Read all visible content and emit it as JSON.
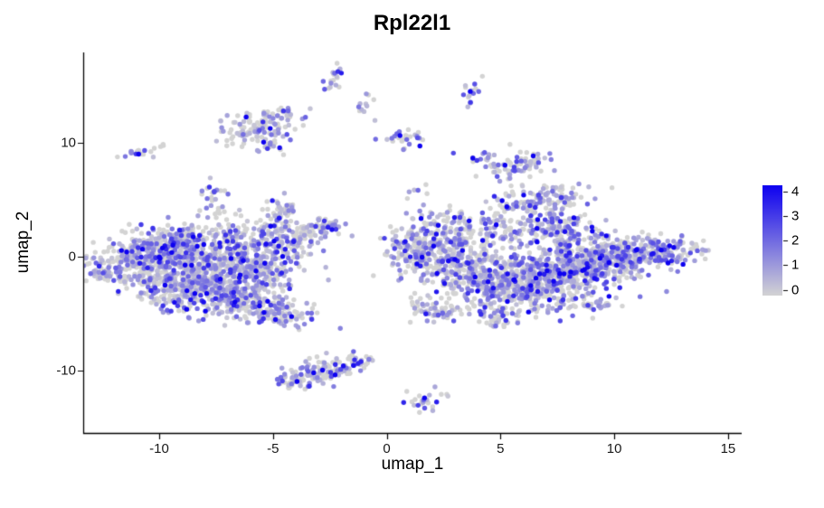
{
  "chart_data": {
    "type": "scatter",
    "title": "Rpl22l1",
    "xlabel": "umap_1",
    "ylabel": "umap_2",
    "xlim": [
      -13.34,
      15.6
    ],
    "ylim": [
      -15.56,
      17.94
    ],
    "x_ticks": [
      -10,
      -5,
      0,
      5,
      10,
      15
    ],
    "y_ticks": [
      10,
      0,
      -10
    ],
    "grid": false,
    "legend_position": "right",
    "background_color": "#FFFFFF",
    "axis_color": "#000000",
    "point_radius_px": 2.7,
    "colorbar": {
      "ticks": [
        0,
        1,
        2,
        3,
        4
      ],
      "low_color": "#D3D3D3",
      "high_color": "#0D00F0"
    },
    "clusters": [
      {
        "cx": -12.4,
        "cy": -1.0,
        "sx": 0.5,
        "sy": 0.9,
        "n": 55,
        "p0": 0.55
      },
      {
        "cx": -10.8,
        "cy": -0.3,
        "sx": 0.9,
        "sy": 1.1,
        "n": 230,
        "p0": 0.46
      },
      {
        "cx": -9.6,
        "cy": 0.9,
        "sx": 0.85,
        "sy": 0.95,
        "n": 190,
        "p0": 0.42
      },
      {
        "cx": -8.6,
        "cy": 1.8,
        "sx": 0.6,
        "sy": 0.6,
        "n": 55,
        "p0": 0.45
      },
      {
        "cx": -9.1,
        "cy": -2.4,
        "sx": 1.0,
        "sy": 1.1,
        "n": 240,
        "p0": 0.46
      },
      {
        "cx": -7.6,
        "cy": -1.0,
        "sx": 1.05,
        "sy": 1.25,
        "n": 280,
        "p0": 0.4
      },
      {
        "cx": -6.6,
        "cy": -3.4,
        "sx": 1.05,
        "sy": 0.95,
        "n": 240,
        "p0": 0.45
      },
      {
        "cx": -4.8,
        "cy": -5.0,
        "sx": 0.8,
        "sy": 0.55,
        "n": 105,
        "p0": 0.5,
        "rot": -15
      },
      {
        "cx": -5.6,
        "cy": -0.6,
        "sx": 0.9,
        "sy": 1.0,
        "n": 185,
        "p0": 0.42
      },
      {
        "cx": -6.3,
        "cy": 2.0,
        "sx": 0.7,
        "sy": 0.8,
        "n": 70,
        "p0": 0.46
      },
      {
        "cx": -4.4,
        "cy": 1.7,
        "sx": 0.65,
        "sy": 0.9,
        "n": 105,
        "p0": 0.45
      },
      {
        "cx": -4.6,
        "cy": 3.9,
        "sx": 0.35,
        "sy": 0.75,
        "n": 38,
        "p0": 0.45
      },
      {
        "cx": -2.8,
        "cy": 2.6,
        "sx": 0.5,
        "sy": 0.45,
        "n": 50,
        "p0": 0.5
      },
      {
        "cx": 1.3,
        "cy": 0.7,
        "sx": 0.8,
        "sy": 1.0,
        "n": 145,
        "p0": 0.5
      },
      {
        "cx": 2.4,
        "cy": 2.8,
        "sx": 0.7,
        "sy": 0.9,
        "n": 70,
        "p0": 0.5
      },
      {
        "cx": 2.9,
        "cy": -0.6,
        "sx": 1.0,
        "sy": 1.2,
        "n": 205,
        "p0": 0.48
      },
      {
        "cx": 4.6,
        "cy": -2.1,
        "sx": 1.2,
        "sy": 1.3,
        "n": 285,
        "p0": 0.45
      },
      {
        "cx": 6.6,
        "cy": -2.4,
        "sx": 1.2,
        "sy": 1.3,
        "n": 305,
        "p0": 0.4
      },
      {
        "cx": 8.1,
        "cy": -1.0,
        "sx": 1.2,
        "sy": 1.15,
        "n": 285,
        "p0": 0.36
      },
      {
        "cx": 8.6,
        "cy": -4.2,
        "sx": 0.8,
        "sy": 0.5,
        "n": 40,
        "p0": 0.42
      },
      {
        "cx": 10.0,
        "cy": -0.2,
        "sx": 1.15,
        "sy": 0.95,
        "n": 250,
        "p0": 0.36
      },
      {
        "cx": 12.1,
        "cy": 0.4,
        "sx": 0.95,
        "sy": 0.6,
        "n": 140,
        "p0": 0.4,
        "rot": 8
      },
      {
        "cx": 6.7,
        "cy": 5.0,
        "sx": 1.2,
        "sy": 0.55,
        "n": 120,
        "p0": 0.4,
        "rot": 10
      },
      {
        "cx": 7.4,
        "cy": 2.6,
        "sx": 1.0,
        "sy": 0.8,
        "n": 140,
        "p0": 0.4
      },
      {
        "cx": 4.6,
        "cy": 2.4,
        "sx": 0.8,
        "sy": 0.8,
        "n": 105,
        "p0": 0.46
      },
      {
        "cx": 2.1,
        "cy": -4.7,
        "sx": 0.7,
        "sy": 0.55,
        "n": 60,
        "p0": 0.5
      },
      {
        "cx": 4.9,
        "cy": -5.4,
        "sx": 0.6,
        "sy": 0.5,
        "n": 45,
        "p0": 0.46
      },
      {
        "cx": 1.4,
        "cy": 6.2,
        "sx": 0.5,
        "sy": 0.7,
        "n": 6,
        "p0": 0.45
      },
      {
        "cx": -5.7,
        "cy": 11.2,
        "sx": 0.85,
        "sy": 0.75,
        "n": 100,
        "p0": 0.45
      },
      {
        "cx": -4.6,
        "cy": 12.4,
        "sx": 0.45,
        "sy": 0.4,
        "n": 26,
        "p0": 0.42
      },
      {
        "cx": -5.1,
        "cy": 9.7,
        "sx": 0.3,
        "sy": 0.3,
        "n": 10,
        "p0": 0.5
      },
      {
        "cx": -10.8,
        "cy": 9.2,
        "sx": 0.5,
        "sy": 0.2,
        "n": 22,
        "p0": 0.6,
        "rot": 20
      },
      {
        "cx": -7.7,
        "cy": 5.8,
        "sx": 0.3,
        "sy": 0.45,
        "n": 16,
        "p0": 0.5
      },
      {
        "cx": -7.45,
        "cy": 4.0,
        "sx": 0.4,
        "sy": 0.4,
        "n": 15,
        "p0": 0.5
      },
      {
        "cx": -2.3,
        "cy": 15.7,
        "sx": 0.2,
        "sy": 0.65,
        "n": 18,
        "p0": 0.4,
        "rot": -12
      },
      {
        "cx": -0.85,
        "cy": 13.1,
        "sx": 0.22,
        "sy": 0.45,
        "n": 11,
        "p0": 0.4
      },
      {
        "cx": 3.75,
        "cy": 14.6,
        "sx": 0.22,
        "sy": 0.6,
        "n": 15,
        "p0": 0.45,
        "rot": -10
      },
      {
        "cx": 0.75,
        "cy": 10.6,
        "sx": 0.4,
        "sy": 0.5,
        "n": 26,
        "p0": 0.45
      },
      {
        "cx": 5.5,
        "cy": 8.2,
        "sx": 0.8,
        "sy": 0.6,
        "n": 85,
        "p0": 0.4
      },
      {
        "cx": -4.0,
        "cy": -11.0,
        "sx": 0.6,
        "sy": 0.42,
        "n": 40,
        "p0": 0.48,
        "rot": 18
      },
      {
        "cx": -2.9,
        "cy": -10.2,
        "sx": 0.7,
        "sy": 0.5,
        "n": 75,
        "p0": 0.44,
        "rot": 18
      },
      {
        "cx": -1.5,
        "cy": -9.3,
        "sx": 0.55,
        "sy": 0.4,
        "n": 45,
        "p0": 0.44,
        "rot": 18
      },
      {
        "cx": 1.8,
        "cy": -12.7,
        "sx": 0.5,
        "sy": 0.45,
        "n": 24,
        "p0": 0.5
      }
    ]
  }
}
